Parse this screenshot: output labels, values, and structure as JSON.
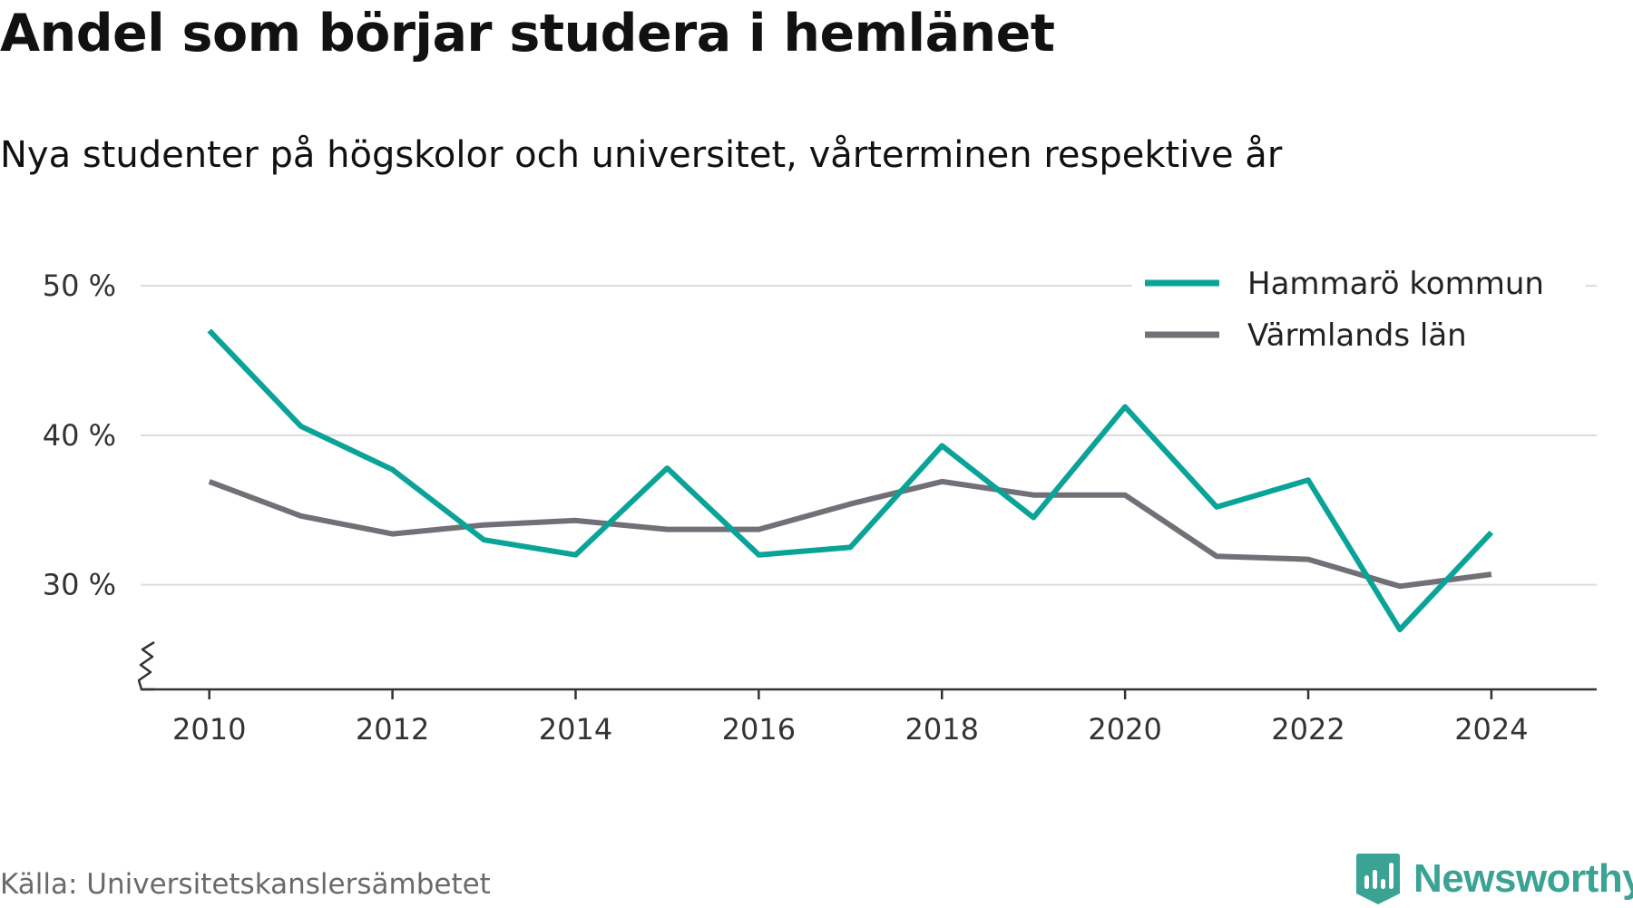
{
  "title": "Andel som börjar studera i hemlänet",
  "subtitle": "Nya studenter på högskolor och universitet, vårterminen respektive år",
  "source": "Källa: Universitetskanslersämbetet",
  "brand": "Newsworthy",
  "colors": {
    "hammaro": "#0aa398",
    "varmland": "#707076",
    "grid": "#dcdcdc",
    "axis": "#333333",
    "text": "#333333",
    "brand": "#3aa394"
  },
  "chart_data": {
    "type": "line",
    "x": [
      2010,
      2011,
      2012,
      2013,
      2014,
      2015,
      2016,
      2017,
      2018,
      2019,
      2020,
      2021,
      2022,
      2023,
      2024
    ],
    "xticks": [
      2010,
      2012,
      2014,
      2016,
      2018,
      2020,
      2022,
      2024
    ],
    "yticks": [
      30,
      40,
      50
    ],
    "ytick_labels": [
      "30 %",
      "40 %",
      "50 %"
    ],
    "ylim": [
      23,
      50
    ],
    "xlim": [
      2009.25,
      2025.15
    ],
    "y_axis_break": true,
    "grid": "horizontal",
    "legend_position": "top-right",
    "xlabel": "",
    "ylabel": "",
    "series": [
      {
        "name": "Hammarö kommun",
        "color": "#0aa398",
        "values": [
          47.0,
          40.6,
          37.7,
          33.0,
          32.0,
          37.8,
          32.0,
          32.5,
          39.3,
          34.5,
          41.9,
          35.2,
          37.0,
          27.0,
          33.5
        ]
      },
      {
        "name": "Värmlands län",
        "color": "#707076",
        "values": [
          36.9,
          34.6,
          33.4,
          34.0,
          34.3,
          33.7,
          33.7,
          35.4,
          36.9,
          36.0,
          36.0,
          31.9,
          31.7,
          29.9,
          30.7
        ]
      }
    ]
  }
}
